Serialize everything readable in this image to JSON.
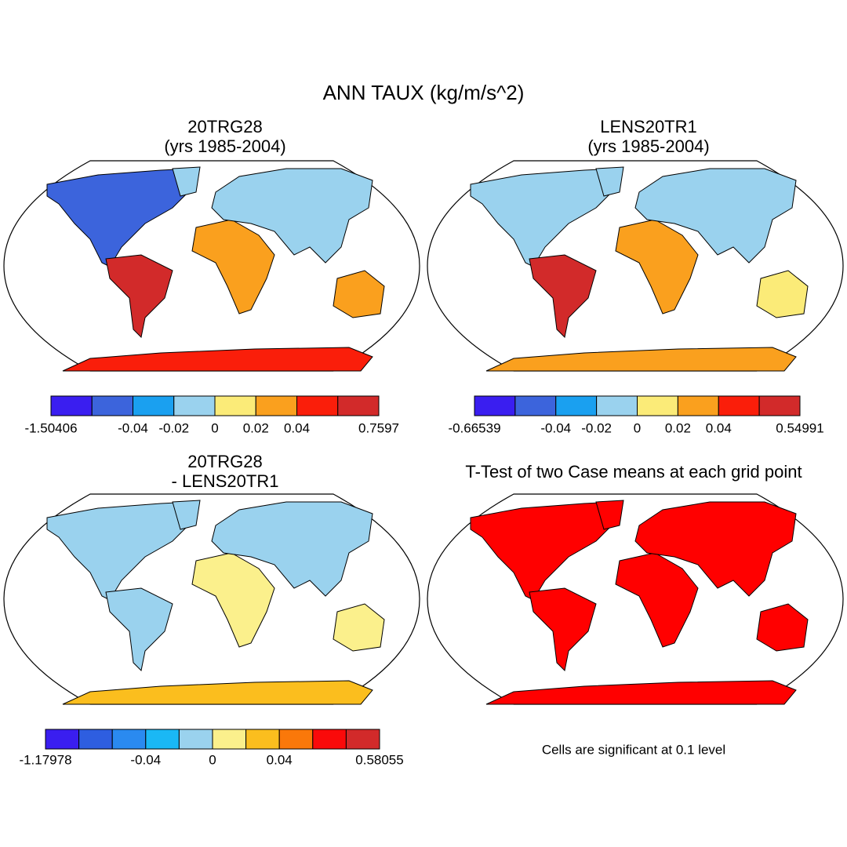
{
  "title": "ANN TAUX (kg/m/s^2)",
  "panels": [
    {
      "title": [
        "20TRG28",
        "(yrs 1985-2004)"
      ],
      "colorbar": {
        "colors": [
          "#3a1ef0",
          "#3c64dc",
          "#1aa0f0",
          "#9ad2ee",
          "#fbeb78",
          "#faa01e",
          "#fa1e0a",
          "#d22a2a"
        ],
        "labels": [
          "-1.50406",
          null,
          "-0.04",
          "-0.02",
          "0",
          "0.02",
          "0.04",
          null,
          "0.7597"
        ]
      }
    },
    {
      "title": [
        "LENS20TR1",
        "(yrs 1985-2004)"
      ],
      "colorbar": {
        "colors": [
          "#3a1ef0",
          "#3c64dc",
          "#1aa0f0",
          "#9ad2ee",
          "#fbeb78",
          "#faa01e",
          "#fa1e0a",
          "#d22a2a"
        ],
        "labels": [
          "-0.66539",
          null,
          "-0.04",
          "-0.02",
          "0",
          "0.02",
          "0.04",
          null,
          "0.54991"
        ]
      }
    },
    {
      "title": [
        "20TRG28",
        "- LENS20TR1"
      ],
      "colorbar": {
        "colors": [
          "#3a1ef0",
          "#2e5ee0",
          "#2a8af0",
          "#1ab8f5",
          "#9ad2ee",
          "#fbf08c",
          "#fbbe1e",
          "#fa780a",
          "#fa0a0a",
          "#d22a2a"
        ],
        "labels": [
          "-1.17978",
          null,
          null,
          "-0.04",
          null,
          "0",
          null,
          "0.04",
          null,
          null,
          "0.58055"
        ]
      }
    },
    {
      "title": [
        "T-Test of two Case means at each grid point"
      ],
      "note": "Cells are significant at 0.1 level"
    }
  ]
}
